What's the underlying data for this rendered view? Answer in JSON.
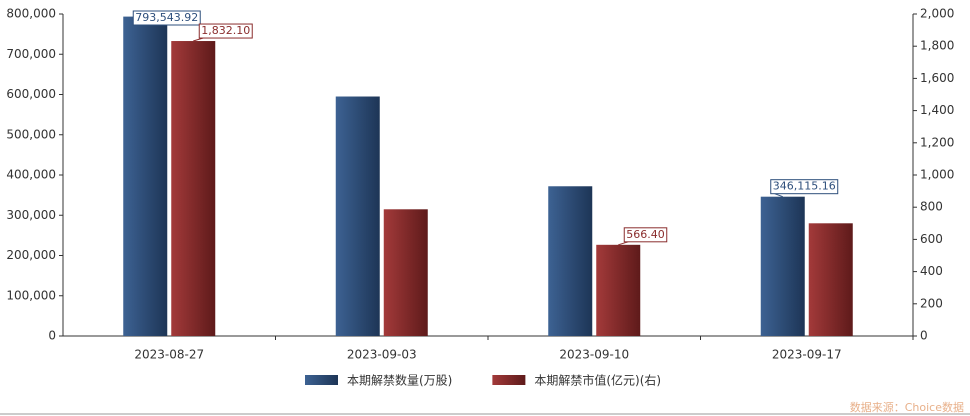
{
  "chart_data": {
    "type": "bar",
    "categories": [
      "2023-08-27",
      "2023-09-03",
      "2023-09-10",
      "2023-09-17"
    ],
    "series": [
      {
        "name": "本期解禁数量(万股)",
        "color": "#2e4f7c",
        "values": [
          793543.92,
          595000,
          372000,
          346115.16
        ],
        "value_labels": [
          "793,543.92",
          null,
          null,
          "346,115.16"
        ]
      },
      {
        "name": "本期解禁市值(亿元)(右)",
        "color": "#8a2d2d",
        "axis": "y2",
        "values": [
          1832.1,
          787,
          566.4,
          700
        ],
        "value_labels": [
          "1,832.10",
          null,
          "566.40",
          null
        ]
      }
    ],
    "ylim": [
      0,
      800000
    ],
    "yticks": [
      0,
      {
        "value": 100000,
        "label": "100,000"
      },
      {
        "value": 200000,
        "label": "200,000"
      },
      {
        "value": 300000,
        "label": "300,000"
      },
      {
        "value": 400000,
        "label": "400,000"
      },
      {
        "value": 500000,
        "label": "500,000"
      },
      {
        "value": 600000,
        "label": "600,000"
      },
      {
        "value": 700000,
        "label": "700,000"
      },
      {
        "value": 800000,
        "label": "800,000"
      }
    ],
    "y2lim": [
      0,
      2000
    ],
    "y2ticks": [
      0,
      200,
      400,
      600,
      800,
      {
        "value": 1000,
        "label": "1,000"
      },
      {
        "value": 1200,
        "label": "1,200"
      },
      {
        "value": 1400,
        "label": "1,400"
      },
      {
        "value": 1600,
        "label": "1,600"
      },
      {
        "value": 1800,
        "label": "1,800"
      },
      {
        "value": 2000,
        "label": "2,000"
      }
    ],
    "legend": "bottom",
    "source": "数据来源：Choice数据"
  }
}
